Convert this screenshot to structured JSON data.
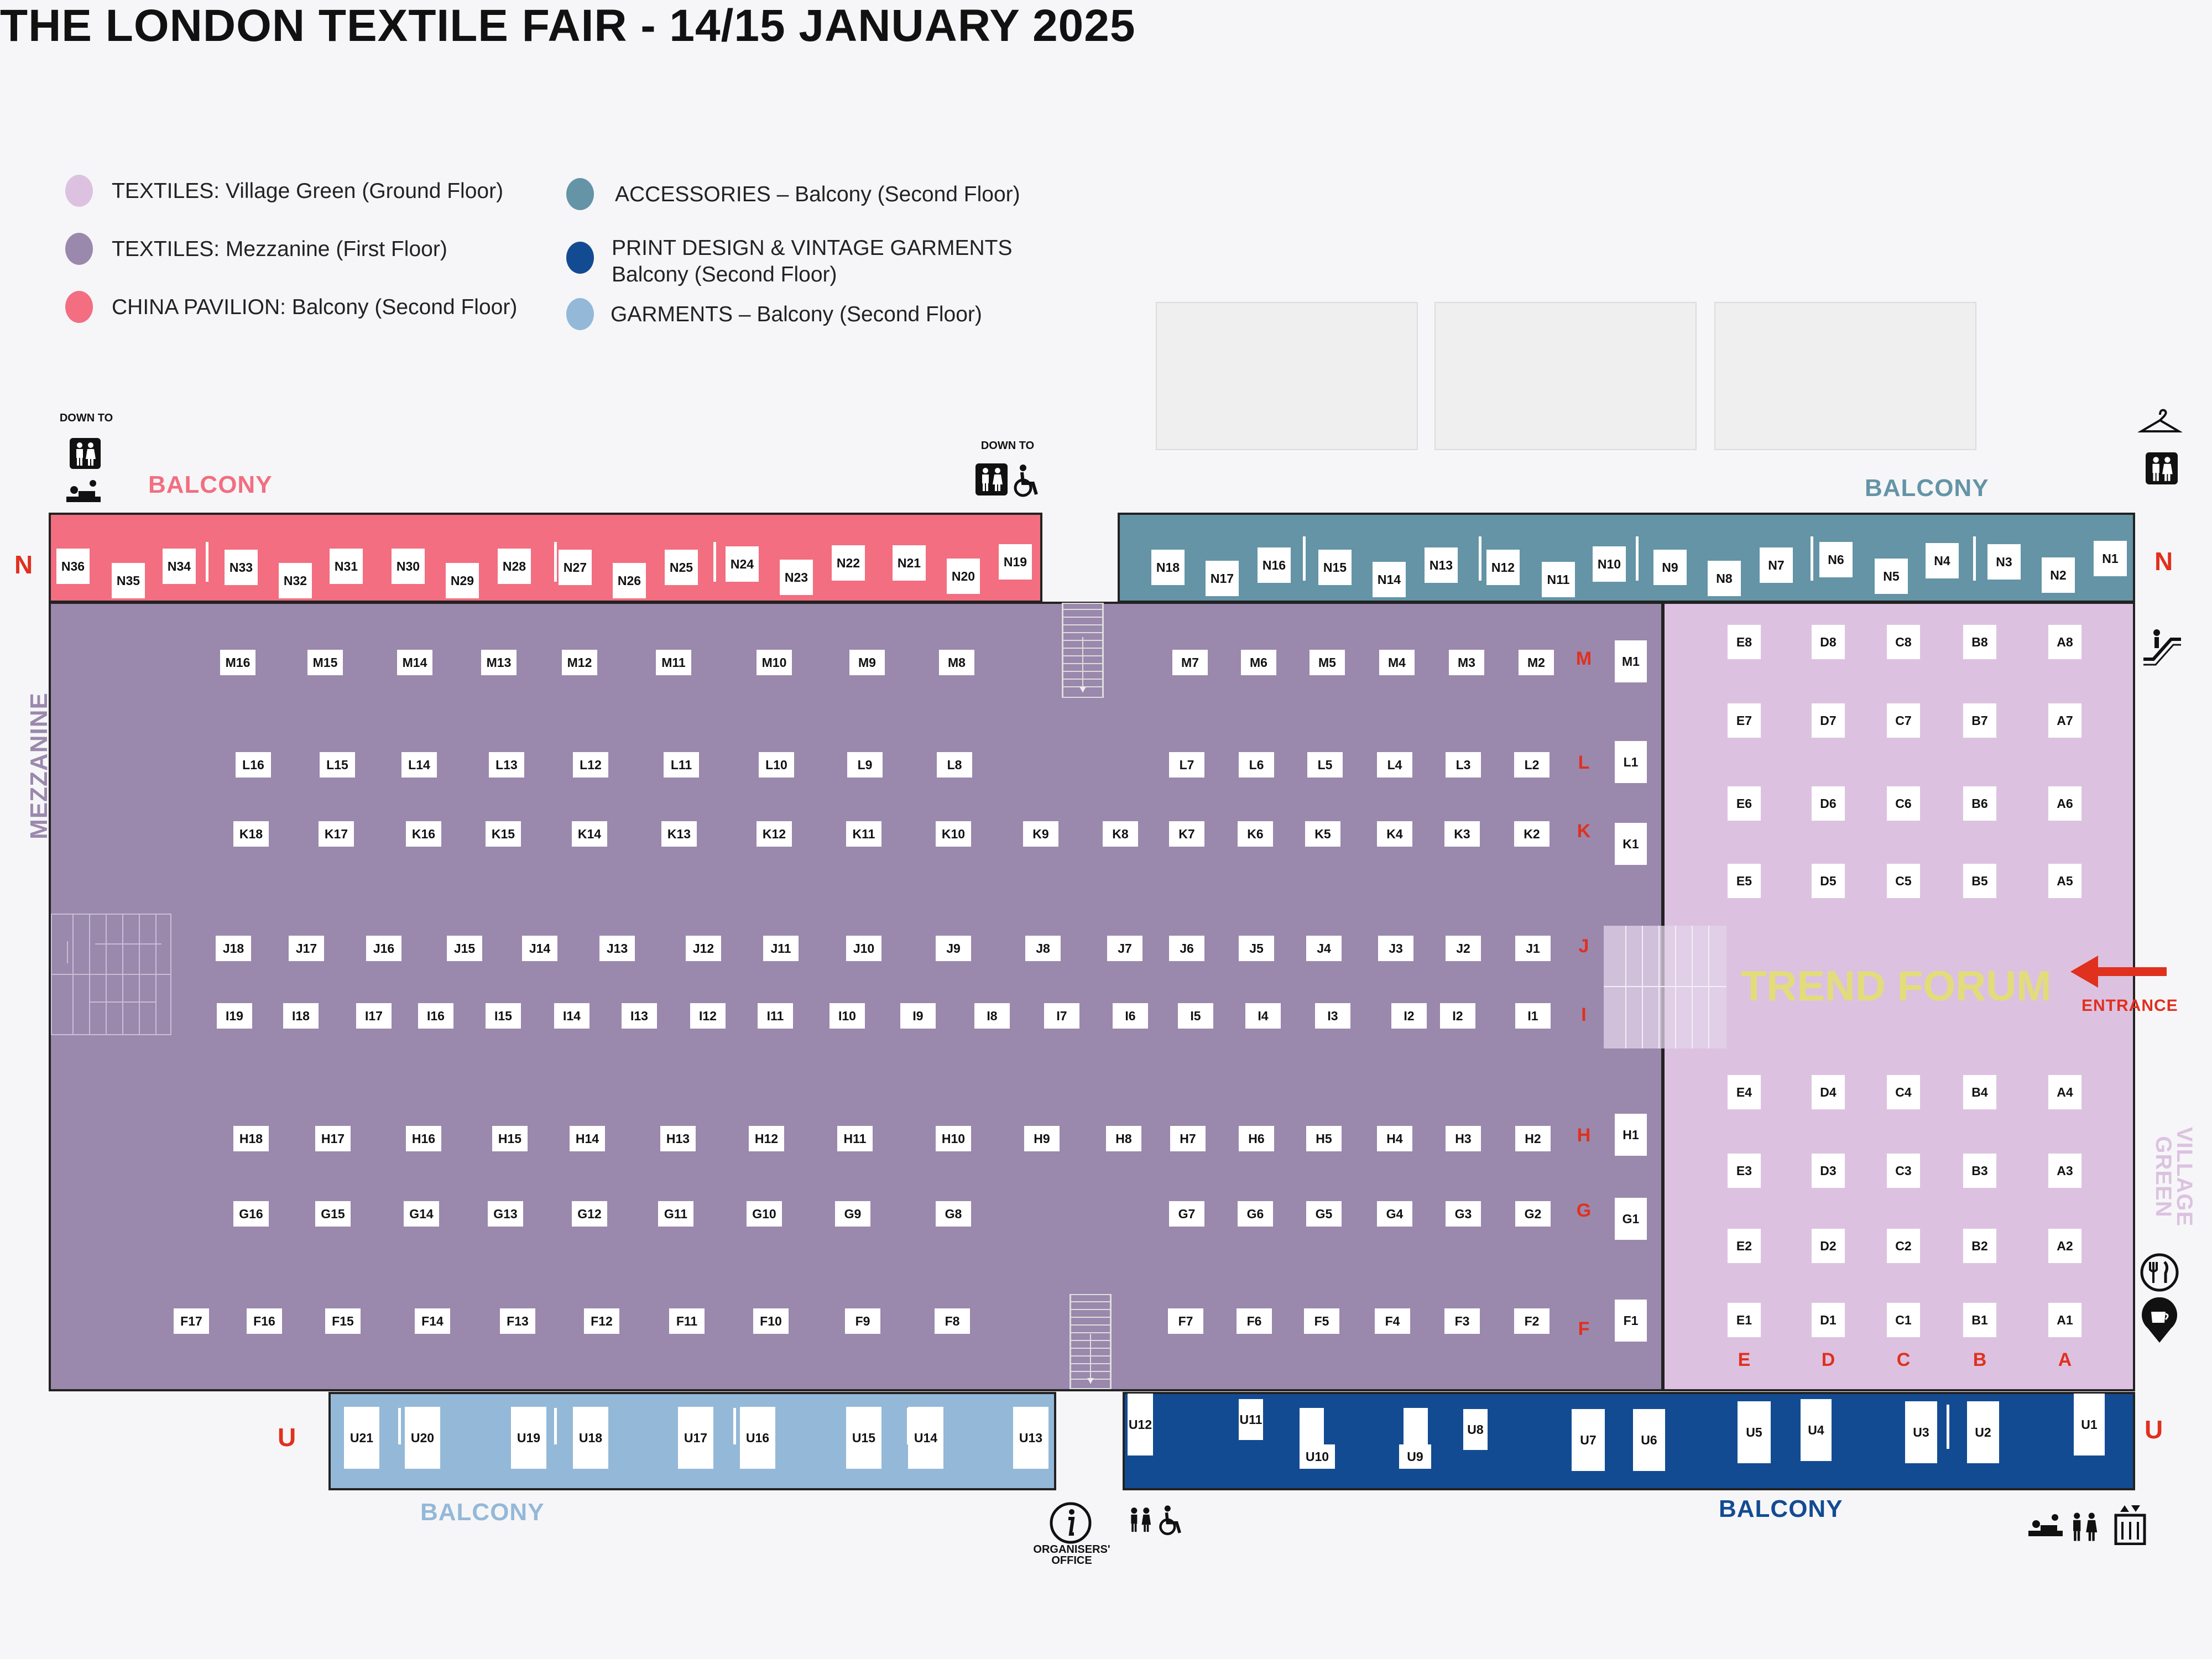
{
  "title": "THE LONDON TEXTILE FAIR - 14/15 JANUARY 2025",
  "legend": [
    {
      "label": "TEXTILES: Village Green (Ground Floor)",
      "color": "#dcc2e0"
    },
    {
      "label": "TEXTILES: Mezzanine (First Floor)",
      "color": "#9b88ad"
    },
    {
      "label": "CHINA PAVILION: Balcony (Second Floor)",
      "color": "#f26e80"
    },
    {
      "label": "ACCESSORIES – Balcony (Second Floor)",
      "color": "#6494a6"
    },
    {
      "label": "PRINT DESIGN & VINTAGE GARMENTS\nBalcony (Second Floor)",
      "color": "#134b92"
    },
    {
      "label": "GARMENTS – Balcony (Second Floor)",
      "color": "#94b8d8"
    }
  ],
  "sections": {
    "balcony_pink": "BALCONY",
    "balcony_teal": "BALCONY",
    "balcony_lightblue": "BALCONY",
    "balcony_navy": "BALCONY",
    "mezzanine": "MEZZANINE",
    "village_green": "VILLAGE GREEN",
    "trend_forum": "TREND FORUM",
    "entrance": "ENTRANCE"
  },
  "row_letters": {
    "n_left": "N",
    "n_right": "N",
    "u_left": "U",
    "u_right": "U"
  },
  "notes": {
    "down_to_left": "DOWN TO",
    "down_to_mid": "DOWN TO",
    "organisers": "ORGANISERS' OFFICE"
  },
  "colors": {
    "pink": "#f26e80",
    "teal": "#6494a6",
    "mezz": "#9b88ad",
    "village": "#dcc2e0",
    "navy": "#134b92",
    "lightblue": "#94b8d8",
    "accent": "#e0301e"
  },
  "icons": [
    "toilets-icon",
    "accessible-toilet-icon",
    "baby-change-icon",
    "cloakroom-hanger-icon",
    "escalator-icon",
    "restaurant-icon",
    "cafe-icon",
    "info-icon",
    "lift-icon",
    "entrance-arrow-icon"
  ],
  "booths": {
    "N_pink": [
      "N36",
      "N35",
      "N34",
      "N33",
      "N32",
      "N31",
      "N30",
      "N29",
      "N28",
      "N27",
      "N26",
      "N25",
      "N24",
      "N23",
      "N22",
      "N21",
      "N20",
      "N19"
    ],
    "N_teal": [
      "N18",
      "N17",
      "N16",
      "N15",
      "N14",
      "N13",
      "N12",
      "N11",
      "N10",
      "N9",
      "N8",
      "N7",
      "N6",
      "N5",
      "N4",
      "N3",
      "N2",
      "N1"
    ],
    "M_left": [
      "M16",
      "M15",
      "M14",
      "M13",
      "M12",
      "M11",
      "M10",
      "M9",
      "M8"
    ],
    "M_right": [
      "M7",
      "M6",
      "M5",
      "M4",
      "M3",
      "M2"
    ],
    "L_left": [
      "L16",
      "L15",
      "L14",
      "L13",
      "L12",
      "L11",
      "L10",
      "L9",
      "L8"
    ],
    "L_right": [
      "L7",
      "L6",
      "L5",
      "L4",
      "L3",
      "L2"
    ],
    "K": [
      "K18",
      "K17",
      "K16",
      "K15",
      "K14",
      "K13",
      "K12",
      "K11",
      "K10",
      "K9",
      "K8",
      "K7",
      "K6",
      "K5",
      "K4",
      "K3",
      "K2"
    ],
    "J": [
      "J18",
      "J17",
      "J16",
      "J15",
      "J14",
      "J13",
      "J12",
      "J11",
      "J10",
      "J9",
      "J8",
      "J7",
      "J6",
      "J5",
      "J4",
      "J3",
      "J2",
      "J1"
    ],
    "I": [
      "I19",
      "I18",
      "I17",
      "I16",
      "I15",
      "I14",
      "I13",
      "I12",
      "I11",
      "I10",
      "I9",
      "I8",
      "I7",
      "I6",
      "I5",
      "I4",
      "I3",
      "I2",
      "I2",
      "I1"
    ],
    "H": [
      "H18",
      "H17",
      "H16",
      "H15",
      "H14",
      "H13",
      "H12",
      "H11",
      "H10",
      "H9",
      "H8",
      "H7",
      "H6",
      "H5",
      "H4",
      "H3",
      "H2"
    ],
    "G_left": [
      "G16",
      "G15",
      "G14",
      "G13",
      "G12",
      "G11",
      "G10",
      "G9",
      "G8"
    ],
    "G_right": [
      "G7",
      "G6",
      "G5",
      "G4",
      "G3",
      "G2"
    ],
    "F_left": [
      "F17",
      "F16",
      "F15",
      "F14",
      "F13",
      "F12",
      "F11",
      "F10",
      "F9",
      "F8"
    ],
    "F_right": [
      "F7",
      "F6",
      "F5",
      "F4",
      "F3",
      "F2"
    ],
    "end_col": [
      "M1",
      "L1",
      "K1",
      "H1",
      "G1",
      "F1"
    ],
    "village_cols": [
      "E",
      "D",
      "C",
      "B",
      "A"
    ],
    "U_light": [
      "U21",
      "U20",
      "U19",
      "U18",
      "U17",
      "U16",
      "U15",
      "U14",
      "U13"
    ],
    "U_navy": [
      "U12",
      "U11",
      "U10",
      "U9",
      "U8",
      "U7",
      "U6",
      "U5",
      "U4",
      "U3",
      "U2",
      "U1"
    ]
  },
  "mezz_row_letters": [
    "M",
    "L",
    "K",
    "J",
    "I",
    "H",
    "G",
    "F"
  ]
}
